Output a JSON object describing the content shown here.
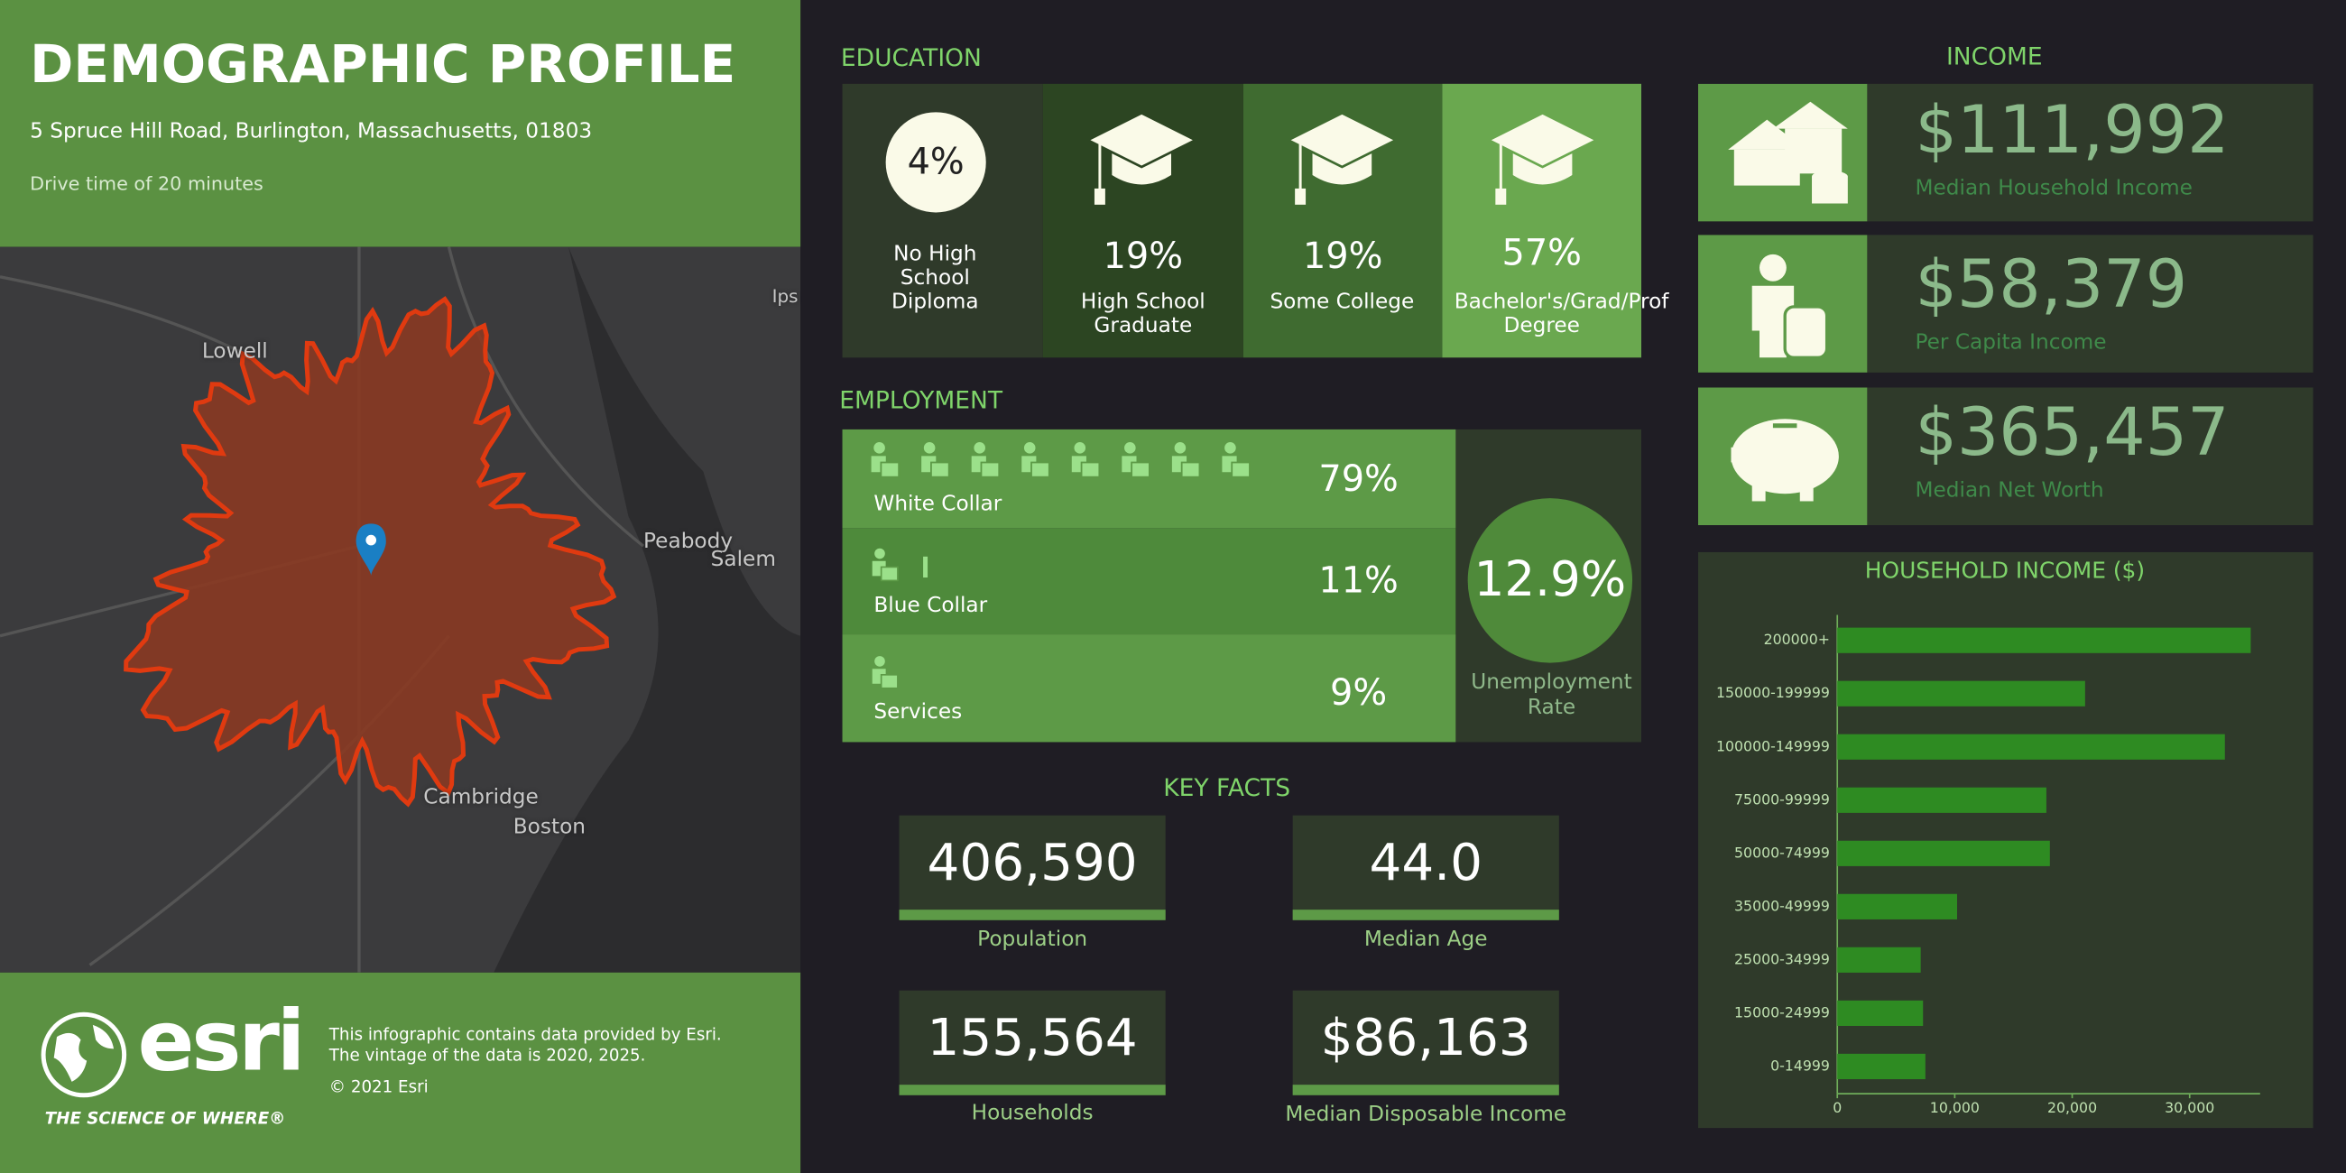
{
  "header": {
    "title": "DEMOGRAPHIC PROFILE",
    "address": "5 Spruce Hill Road, Burlington, Massachusetts, 01803",
    "subtitle": "Drive time of 20 minutes"
  },
  "map": {
    "labels": [
      "Lowell",
      "Peabody",
      "Salem",
      "Cambridge",
      "Boston",
      "Ips"
    ]
  },
  "footer": {
    "brand": "esri",
    "tagline": "THE SCIENCE OF WHERE®",
    "lines": [
      "This infographic contains data provided by Esri.",
      "The vintage of the data is 2020, 2025.",
      "© 2021 Esri"
    ]
  },
  "education": {
    "title": "EDUCATION",
    "items": [
      {
        "value": "4%",
        "label": "No High School Diploma"
      },
      {
        "value": "19%",
        "label": "High School Graduate"
      },
      {
        "value": "19%",
        "label": "Some College"
      },
      {
        "value": "57%",
        "label": "Bachelor's/Grad/Prof Degree"
      }
    ]
  },
  "employment": {
    "title": "EMPLOYMENT",
    "rows": [
      {
        "label": "White Collar",
        "value": "79%"
      },
      {
        "label": "Blue Collar",
        "value": "11%"
      },
      {
        "label": "Services",
        "value": "9%"
      }
    ],
    "unemployment": {
      "value": "12.9%",
      "label": "Unemployment Rate"
    }
  },
  "key_facts": {
    "title": "KEY FACTS",
    "items": [
      {
        "value": "406,590",
        "label": "Population"
      },
      {
        "value": "44.0",
        "label": "Median Age"
      },
      {
        "value": "155,564",
        "label": "Households"
      },
      {
        "value": "$86,163",
        "label": "Median Disposable Income"
      }
    ]
  },
  "income": {
    "title": "INCOME",
    "items": [
      {
        "value": "$111,992",
        "label": "Median Household Income"
      },
      {
        "value": "$58,379",
        "label": "Per Capita Income"
      },
      {
        "value": "$365,457",
        "label": "Median Net Worth"
      }
    ]
  },
  "chart_data": {
    "type": "bar",
    "orientation": "horizontal",
    "title": "HOUSEHOLD INCOME ($)",
    "categories": [
      "200000+",
      "150000-199999",
      "100000-149999",
      "75000-99999",
      "50000-74999",
      "35000-49999",
      "25000-34999",
      "15000-24999",
      "0-14999"
    ],
    "values": [
      35200,
      21100,
      33000,
      17800,
      18100,
      10200,
      7100,
      7300,
      7500
    ],
    "color": "#2e8b22",
    "xlim": [
      0,
      36000
    ],
    "xticks": [
      0,
      {
        "value": 10000,
        "label": "10,000"
      },
      {
        "value": 20000,
        "label": "20,000"
      },
      {
        "value": 30000,
        "label": "30,000"
      }
    ]
  }
}
